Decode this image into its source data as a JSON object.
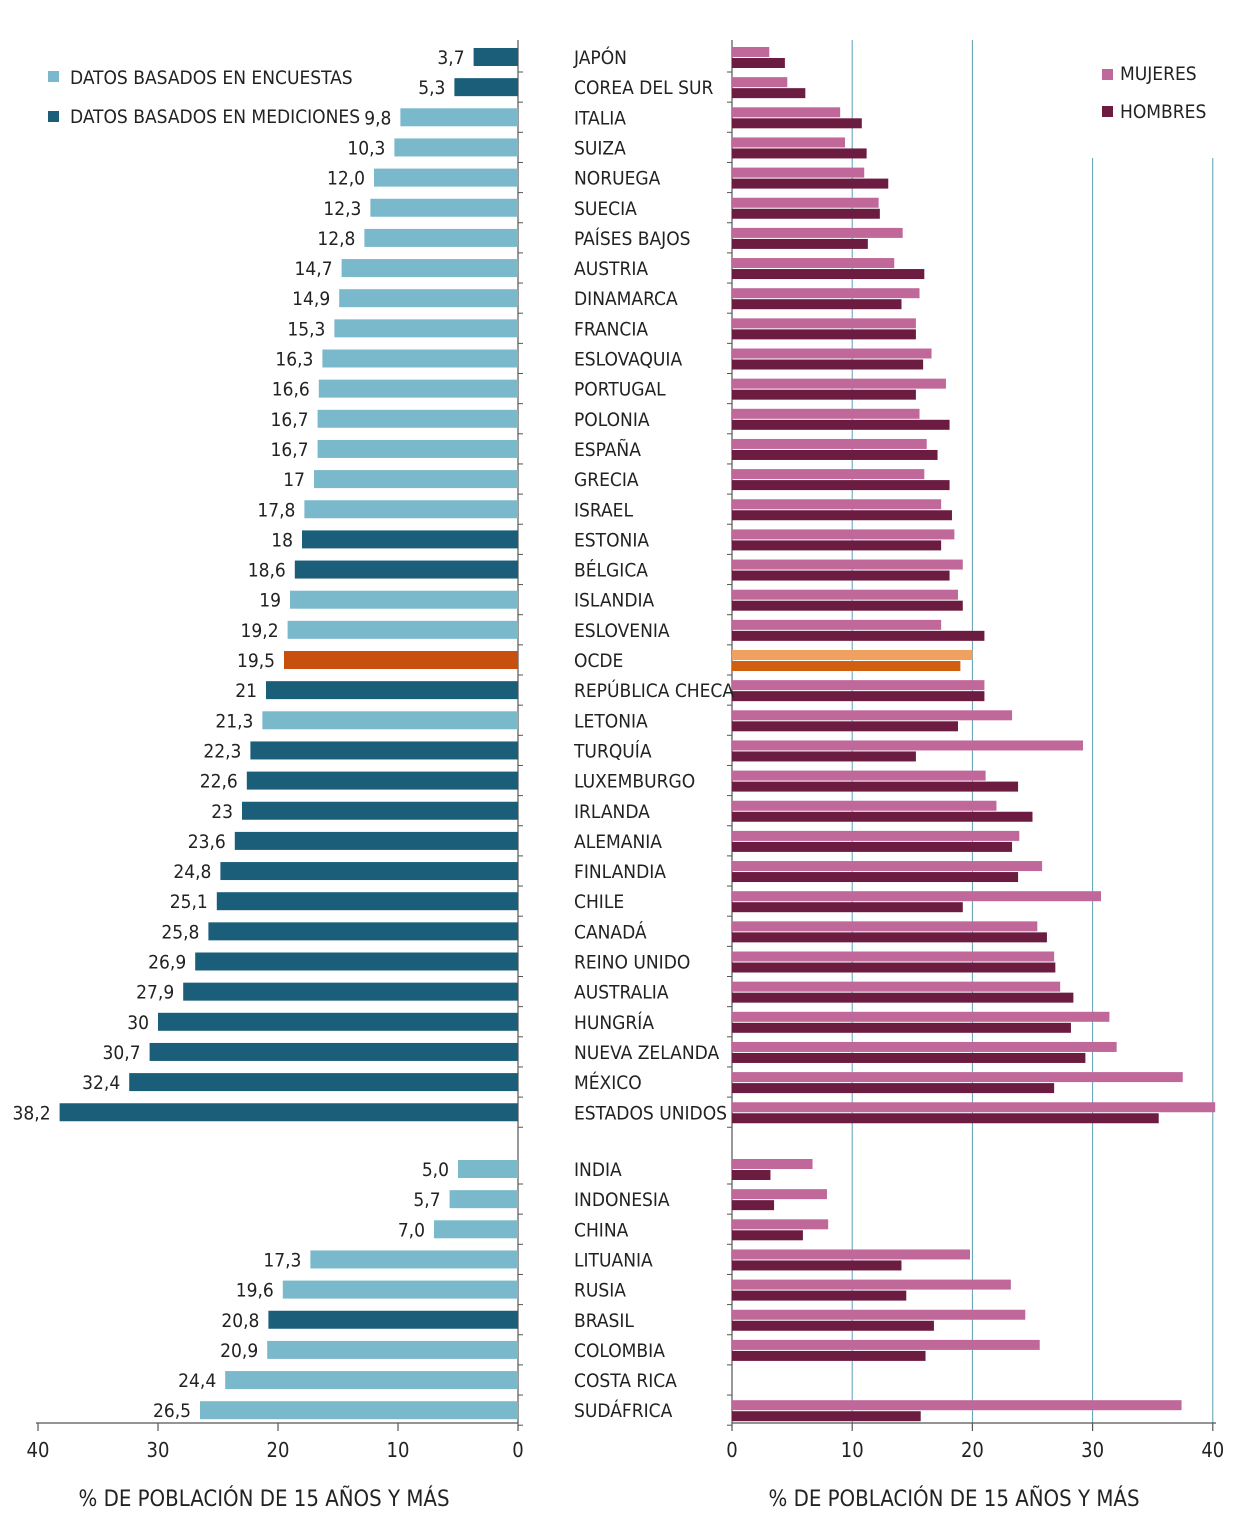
{
  "colors": {
    "survey": "#7ab8cc",
    "measured": "#1b5e7a",
    "oecd_left": "#c8500f",
    "women": "#c0689a",
    "men": "#6b1c40",
    "oecd_women": "#f0a060",
    "oecd_men": "#d06010",
    "grid": "#5a9fb5"
  },
  "chart_data": [
    {
      "type": "bar",
      "orientation": "horizontal",
      "legend": {
        "placement": "top-left",
        "entries": [
          "DATOS BASADOS EN ENCUESTAS",
          "DATOS BASADOS EN MEDICIONES"
        ]
      },
      "xlabel": "% DE POBLACIÓN DE 15 AÑOS Y MÁS",
      "xlim": [
        40,
        0
      ],
      "xticks": [
        "40",
        "30",
        "20",
        "10",
        "0"
      ],
      "categories": [
        "JAPÓN",
        "COREA DEL SUR",
        "ITALIA",
        "SUIZA",
        "NORUEGA",
        "SUECIA",
        "PAÍSES BAJOS",
        "AUSTRIA",
        "DINAMARCA",
        "FRANCIA",
        "ESLOVAQUIA",
        "PORTUGAL",
        "POLONIA",
        "ESPAÑA",
        "GRECIA",
        "ISRAEL",
        "ESTONIA",
        "BÉLGICA",
        "ISLANDIA",
        "ESLOVENIA",
        "OCDE",
        "REPÚBLICA CHECA",
        "LETONIA",
        "TURQUÍA",
        "LUXEMBURGO",
        "IRLANDA",
        "ALEMANIA",
        "FINLANDIA",
        "CHILE",
        "CANADÁ",
        "REINO UNIDO",
        "AUSTRALIA",
        "HUNGRÍA",
        "NUEVA ZELANDA",
        "MÉXICO",
        "ESTADOS UNIDOS",
        "INDIA",
        "INDONESIA",
        "CHINA",
        "LITUANIA",
        "RUSIA",
        "BRASIL",
        "COLOMBIA",
        "COSTA RICA",
        "SUDÁFRICA"
      ],
      "values": [
        3.7,
        5.3,
        9.8,
        10.3,
        12.0,
        12.3,
        12.8,
        14.7,
        14.9,
        15.3,
        16.3,
        16.6,
        16.7,
        16.7,
        17,
        17.8,
        18,
        18.6,
        19,
        19.2,
        19.5,
        21,
        21.3,
        22.3,
        22.6,
        23,
        23.6,
        24.8,
        25.1,
        25.8,
        26.9,
        27.9,
        30,
        30.7,
        32.4,
        38.2,
        5.0,
        5.7,
        7.0,
        17.3,
        19.6,
        20.8,
        20.9,
        24.4,
        26.5
      ],
      "value_labels": [
        "3,7",
        "5,3",
        "9,8",
        "10,3",
        "12,0",
        "12,3",
        "12,8",
        "14,7",
        "14,9",
        "15,3",
        "16,3",
        "16,6",
        "16,7",
        "16,7",
        "17",
        "17,8",
        "18",
        "18,6",
        "19",
        "19,2",
        "19,5",
        "21",
        "21,3",
        "22,3",
        "22,6",
        "23",
        "23,6",
        "24,8",
        "25,1",
        "25,8",
        "26,9",
        "27,9",
        "30",
        "30,7",
        "32,4",
        "38,2",
        "5,0",
        "5,7",
        "7,0",
        "17,3",
        "19,6",
        "20,8",
        "20,9",
        "24,4",
        "26,5"
      ],
      "data_basis": [
        "M",
        "M",
        "S",
        "S",
        "S",
        "S",
        "S",
        "S",
        "S",
        "S",
        "S",
        "S",
        "S",
        "S",
        "S",
        "S",
        "M",
        "M",
        "S",
        "S",
        "OECD",
        "M",
        "S",
        "M",
        "M",
        "M",
        "M",
        "M",
        "M",
        "M",
        "M",
        "M",
        "M",
        "M",
        "M",
        "M",
        "S",
        "S",
        "S",
        "S",
        "S",
        "M",
        "S",
        "S",
        "S"
      ]
    },
    {
      "type": "bar",
      "orientation": "horizontal",
      "legend": {
        "placement": "top-right",
        "entries": [
          "MUJERES",
          "HOMBRES"
        ]
      },
      "xlabel": "% DE POBLACIÓN DE 15 AÑOS Y MÁS",
      "xlim": [
        0,
        40
      ],
      "xticks": [
        "0",
        "10",
        "20",
        "30",
        "40"
      ],
      "grid": true,
      "series": [
        {
          "name": "MUJERES",
          "values": [
            3.1,
            4.6,
            9.0,
            9.4,
            11.0,
            12.2,
            14.2,
            13.5,
            15.6,
            15.3,
            16.6,
            17.8,
            15.6,
            16.2,
            16.0,
            17.4,
            18.5,
            19.2,
            18.8,
            17.4,
            20.0,
            21.0,
            23.3,
            29.2,
            21.1,
            22.0,
            23.9,
            25.8,
            30.7,
            25.4,
            26.8,
            27.3,
            31.4,
            32.0,
            37.5,
            40.2,
            6.7,
            7.9,
            8.0,
            19.8,
            23.2,
            24.4,
            25.6,
            0,
            37.4
          ]
        },
        {
          "name": "HOMBRES",
          "values": [
            4.4,
            6.1,
            10.8,
            11.2,
            13.0,
            12.3,
            11.3,
            16.0,
            14.1,
            15.3,
            15.9,
            15.3,
            18.1,
            17.1,
            18.1,
            18.3,
            17.4,
            18.1,
            19.2,
            21.0,
            19.0,
            21.0,
            18.8,
            15.3,
            23.8,
            25.0,
            23.3,
            23.8,
            19.2,
            26.2,
            26.9,
            28.4,
            28.2,
            29.4,
            26.8,
            35.5,
            3.2,
            3.5,
            5.9,
            14.1,
            14.5,
            16.8,
            16.1,
            0,
            15.7
          ]
        }
      ]
    }
  ]
}
